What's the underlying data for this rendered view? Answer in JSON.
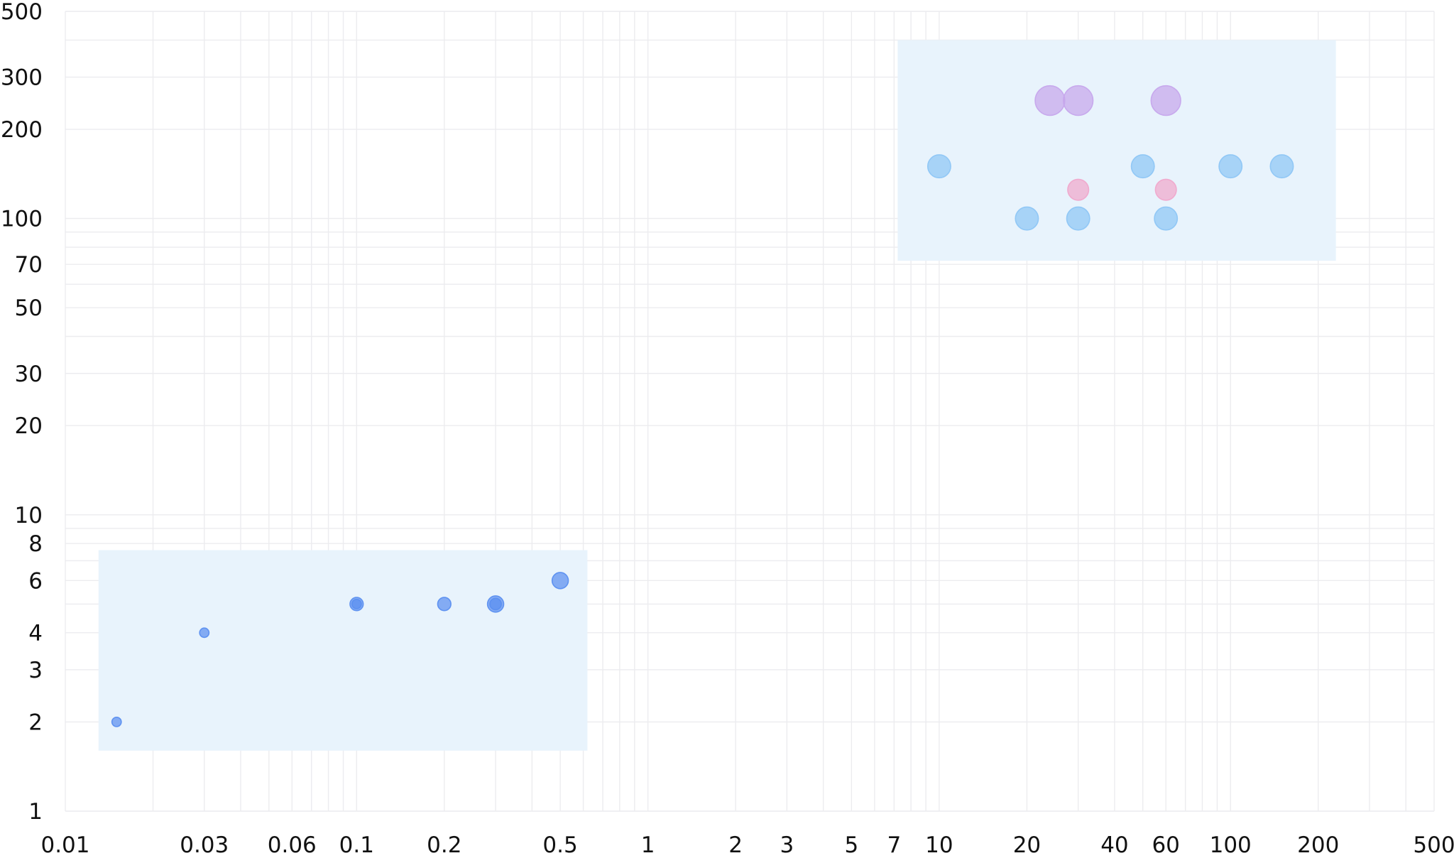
{
  "chart_data": {
    "type": "scatter",
    "title": "",
    "xlabel": "",
    "ylabel": "",
    "x_scale": "log",
    "y_scale": "log",
    "xlim": [
      0.01,
      500
    ],
    "ylim": [
      1,
      500
    ],
    "grid": true,
    "x_ticks": [
      "0.01",
      "0.03",
      "0.06",
      "0.1",
      "0.2",
      "0.5",
      "1",
      "2",
      "3",
      "5",
      "7",
      "10",
      "20",
      "40",
      "60",
      "100",
      "200",
      "500"
    ],
    "y_ticks": [
      "1",
      "2",
      "3",
      "4",
      "6",
      "8",
      "10",
      "20",
      "30",
      "50",
      "70",
      "100",
      "200",
      "300",
      "500"
    ],
    "regions": [
      {
        "x": [
          0.013,
          0.62
        ],
        "y": [
          1.6,
          7.6
        ],
        "color": "#e8f3fc"
      },
      {
        "x": [
          7.2,
          230
        ],
        "y": [
          72,
          400
        ],
        "color": "#e8f3fc"
      }
    ],
    "series": [
      {
        "color": "#5b8ff0",
        "points": [
          {
            "x": 0.015,
            "y": 2,
            "size": 1
          },
          {
            "x": 0.03,
            "y": 4,
            "size": 1
          },
          {
            "x": 0.1,
            "y": 5,
            "size": 2
          },
          {
            "x": 0.1,
            "y": 5,
            "size": 1
          },
          {
            "x": 0.2,
            "y": 5,
            "size": 2
          },
          {
            "x": 0.3,
            "y": 5,
            "size": 3
          },
          {
            "x": 0.3,
            "y": 5,
            "size": 1.5
          },
          {
            "x": 0.5,
            "y": 6,
            "size": 3
          }
        ]
      },
      {
        "color": "#8ec6f5",
        "points": [
          {
            "x": 10,
            "y": 150,
            "size": 6
          },
          {
            "x": 50,
            "y": 150,
            "size": 6
          },
          {
            "x": 100,
            "y": 150,
            "size": 6
          },
          {
            "x": 150,
            "y": 150,
            "size": 6
          },
          {
            "x": 20,
            "y": 100,
            "size": 6
          },
          {
            "x": 30,
            "y": 100,
            "size": 6
          },
          {
            "x": 60,
            "y": 100,
            "size": 6
          }
        ]
      },
      {
        "color": "#f0a8cc",
        "points": [
          {
            "x": 30,
            "y": 125,
            "size": 5
          },
          {
            "x": 60,
            "y": 125,
            "size": 5
          }
        ]
      },
      {
        "color": "#c6a6ec",
        "points": [
          {
            "x": 24,
            "y": 250,
            "size": 10
          },
          {
            "x": 30,
            "y": 250,
            "size": 10
          },
          {
            "x": 60,
            "y": 250,
            "size": 10
          }
        ]
      }
    ]
  }
}
